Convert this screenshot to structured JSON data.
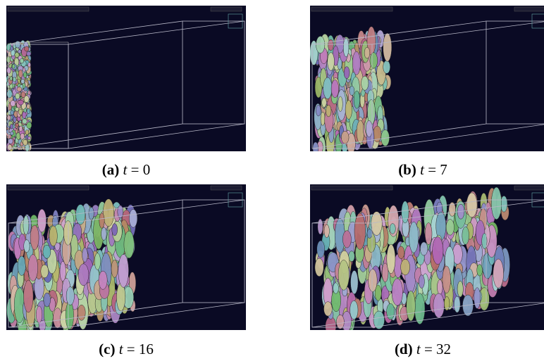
{
  "figure": {
    "panels": [
      {
        "label": "(a)",
        "symbol": "t",
        "relation": "=",
        "value": 0
      },
      {
        "label": "(b)",
        "symbol": "t",
        "relation": "=",
        "value": 7
      },
      {
        "label": "(c)",
        "symbol": "t",
        "relation": "=",
        "value": 16
      },
      {
        "label": "(d)",
        "symbol": "t",
        "relation": "=",
        "value": 32
      }
    ]
  }
}
